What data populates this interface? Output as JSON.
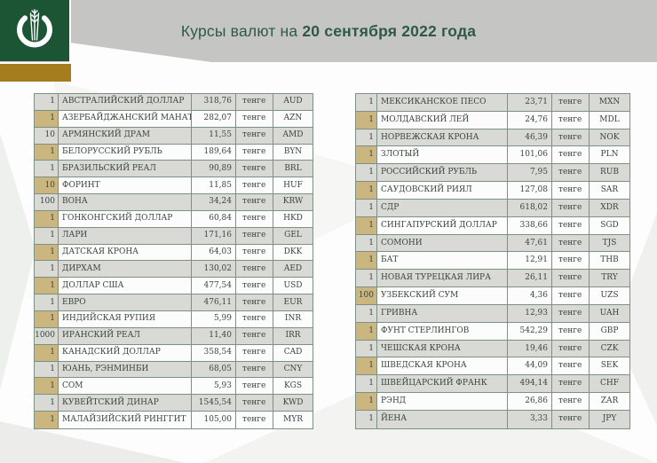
{
  "header": {
    "title_prefix": "Курсы валют на",
    "title_date": "20 сентября 2022 года",
    "logo_icon": "national-bank-kazakhstan-emblem"
  },
  "colors": {
    "brand_green": "#1b5534",
    "brand_gold": "#a57d1e",
    "header_gray": "#c5c6c3",
    "title_green": "#2d5a45",
    "table_border": "#7d9081",
    "row_gray": "#d9dad6",
    "row_white": "#fcfcfd",
    "qty_tan": "#ccb67f"
  },
  "columns": [
    "quantity",
    "currency_name",
    "rate",
    "unit",
    "code"
  ],
  "tables": {
    "left": {
      "rows": [
        [
          "1",
          "АВСТРАЛИЙСКИЙ ДОЛЛАР",
          "318,76",
          "тенге",
          "AUD"
        ],
        [
          "1",
          "АЗЕРБАЙДЖАНСКИЙ МАНАТ",
          "282,07",
          "тенге",
          "AZN"
        ],
        [
          "10",
          "АРМЯНСКИЙ ДРАМ",
          "11,55",
          "тенге",
          "AMD"
        ],
        [
          "1",
          "БЕЛОРУССКИЙ РУБЛЬ",
          "189,64",
          "тенге",
          "BYN"
        ],
        [
          "1",
          "БРАЗИЛЬСКИЙ РЕАЛ",
          "90,89",
          "тенге",
          "BRL"
        ],
        [
          "10",
          "ФОРИНТ",
          "11,85",
          "тенге",
          "HUF"
        ],
        [
          "100",
          "ВОНА",
          "34,24",
          "тенге",
          "KRW"
        ],
        [
          "1",
          "ГОНКОНГСКИЙ ДОЛЛАР",
          "60,84",
          "тенге",
          "HKD"
        ],
        [
          "1",
          "ЛАРИ",
          "171,16",
          "тенге",
          "GEL"
        ],
        [
          "1",
          "ДАТСКАЯ КРОНА",
          "64,03",
          "тенге",
          "DKK"
        ],
        [
          "1",
          "ДИРХАМ",
          "130,02",
          "тенге",
          "AED"
        ],
        [
          "1",
          "ДОЛЛАР США",
          "477,54",
          "тенге",
          "USD"
        ],
        [
          "1",
          "ЕВРО",
          "476,11",
          "тенге",
          "EUR"
        ],
        [
          "1",
          "ИНДИЙСКАЯ РУПИЯ",
          "5,99",
          "тенге",
          "INR"
        ],
        [
          "1000",
          "ИРАНСКИЙ РЕАЛ",
          "11,40",
          "тенге",
          "IRR"
        ],
        [
          "1",
          "КАНАДСКИЙ ДОЛЛАР",
          "358,54",
          "тенге",
          "CAD"
        ],
        [
          "1",
          "ЮАНЬ, РЭНМИНБИ",
          "68,05",
          "тенге",
          "CNY"
        ],
        [
          "1",
          "СОМ",
          "5,93",
          "тенге",
          "KGS"
        ],
        [
          "1",
          "КУВЕЙТСКИЙ ДИНАР",
          "1545,54",
          "тенге",
          "KWD"
        ],
        [
          "1",
          "МАЛАЙЗИЙСКИЙ РИНГГИТ",
          "105,00",
          "тенге",
          "MYR"
        ]
      ]
    },
    "right": {
      "rows": [
        [
          "1",
          "МЕКСИКАНСКОЕ ПЕСО",
          "23,71",
          "тенге",
          "MXN"
        ],
        [
          "1",
          "МОЛДАВСКИЙ ЛЕЙ",
          "24,76",
          "тенге",
          "MDL"
        ],
        [
          "1",
          "НОРВЕЖСКАЯ КРОНА",
          "46,39",
          "тенге",
          "NOK"
        ],
        [
          "1",
          "ЗЛОТЫЙ",
          "101,06",
          "тенге",
          "PLN"
        ],
        [
          "1",
          "РОССИЙСКИЙ РУБЛЬ",
          "7,95",
          "тенге",
          "RUB"
        ],
        [
          "1",
          "САУДОВСКИЙ РИЯЛ",
          "127,08",
          "тенге",
          "SAR"
        ],
        [
          "1",
          "СДР",
          "618,02",
          "тенге",
          "XDR"
        ],
        [
          "1",
          "СИНГАПУРСКИЙ ДОЛЛАР",
          "338,66",
          "тенге",
          "SGD"
        ],
        [
          "1",
          "СОМОНИ",
          "47,61",
          "тенге",
          "TJS"
        ],
        [
          "1",
          "БАТ",
          "12,91",
          "тенге",
          "THB"
        ],
        [
          "1",
          "НОВАЯ ТУРЕЦКАЯ ЛИРА",
          "26,11",
          "тенге",
          "TRY"
        ],
        [
          "100",
          "УЗБЕКСКИЙ СУМ",
          "4,36",
          "тенге",
          "UZS"
        ],
        [
          "1",
          "ГРИВНА",
          "12,93",
          "тенге",
          "UAH"
        ],
        [
          "1",
          "ФУНТ СТЕРЛИНГОВ",
          "542,29",
          "тенге",
          "GBP"
        ],
        [
          "1",
          "ЧЕШСКАЯ КРОНА",
          "19,46",
          "тенге",
          "CZK"
        ],
        [
          "1",
          "ШВЕДСКАЯ КРОНА",
          "44,09",
          "тенге",
          "SEK"
        ],
        [
          "1",
          "ШВЕЙЦАРСКИЙ ФРАНК",
          "494,14",
          "тенге",
          "CHF"
        ],
        [
          "1",
          "РЭНД",
          "26,86",
          "тенге",
          "ZAR"
        ],
        [
          "1",
          "ЙЕНА",
          "3,33",
          "тенге",
          "JPY"
        ]
      ]
    }
  }
}
